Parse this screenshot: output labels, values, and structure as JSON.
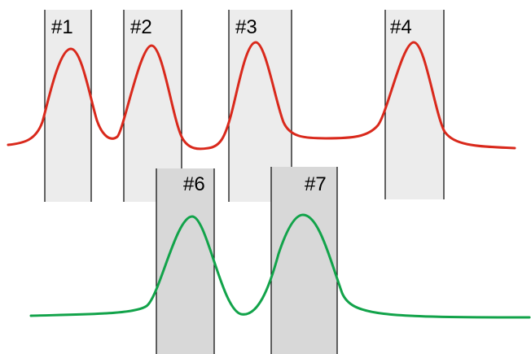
{
  "top_row": {
    "curve_color": "#d9291c",
    "band_fill": "#ececec",
    "bands": [
      {
        "label": "#1"
      },
      {
        "label": "#2"
      },
      {
        "label": "#3"
      },
      {
        "label": "#4"
      }
    ]
  },
  "bottom_row": {
    "curve_color": "#12a34a",
    "band_fill": "#d8d8d8",
    "bands": [
      {
        "label": "#6"
      },
      {
        "label": "#7"
      }
    ]
  }
}
